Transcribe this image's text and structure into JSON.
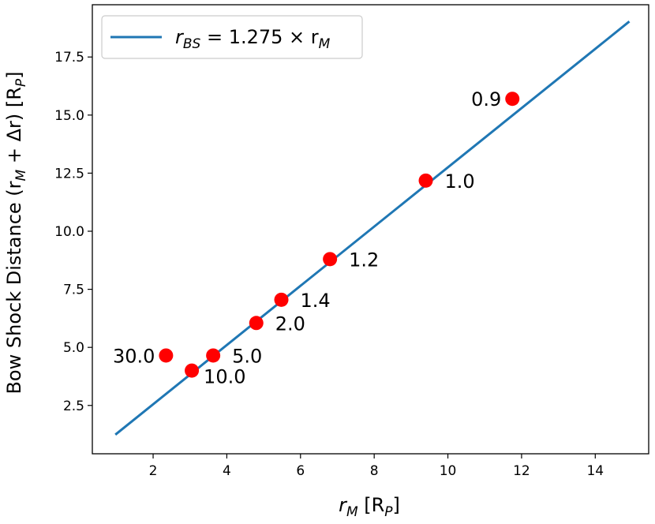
{
  "chart_data": {
    "type": "scatter",
    "xlabel_main": "r",
    "xlabel_sub": "M",
    "xlabel_unit_open": " [R",
    "xlabel_unit_sub": "P",
    "xlabel_unit_close": "]",
    "ylabel_main": "Bow Shock Distance  (r",
    "ylabel_sub": "M",
    "ylabel_mid": " + Δr) [R",
    "ylabel_unit_sub": "P",
    "ylabel_close": "]",
    "xlim": [
      0.35,
      15.45
    ],
    "ylim": [
      0.42,
      19.75
    ],
    "xticks": [
      2,
      4,
      6,
      8,
      10,
      12,
      14
    ],
    "yticks": [
      2.5,
      5.0,
      7.5,
      10.0,
      12.5,
      15.0,
      17.5
    ],
    "ytick_labels": [
      "2.5",
      "5.0",
      "7.5",
      "10.0",
      "12.5",
      "15.0",
      "17.5"
    ],
    "colors": {
      "points": "#ff0000",
      "fit": "#1f77b4"
    },
    "points": [
      {
        "x": 11.75,
        "y": 15.7,
        "label": "0.9",
        "label_side": "left"
      },
      {
        "x": 9.4,
        "y": 12.18,
        "label": "1.0",
        "label_side": "right"
      },
      {
        "x": 6.8,
        "y": 8.8,
        "label": "1.2",
        "label_side": "right"
      },
      {
        "x": 5.48,
        "y": 7.05,
        "label": "1.4",
        "label_side": "right"
      },
      {
        "x": 4.8,
        "y": 6.05,
        "label": "2.0",
        "label_side": "right"
      },
      {
        "x": 3.63,
        "y": 4.65,
        "label": "5.0",
        "label_side": "right"
      },
      {
        "x": 3.05,
        "y": 4.0,
        "label": "10.0",
        "label_side": "right-below"
      },
      {
        "x": 2.35,
        "y": 4.65,
        "label": "30.0",
        "label_side": "left"
      }
    ],
    "fit_line": {
      "x": [
        1.0,
        14.9
      ],
      "y": [
        1.275,
        18.9975
      ],
      "legend_label_main": "r",
      "legend_label_sub": "BS",
      "legend_label_rest": " = 1.275 × r",
      "legend_label_sub2": "M"
    },
    "legend_position": "top-left",
    "grid": false
  }
}
